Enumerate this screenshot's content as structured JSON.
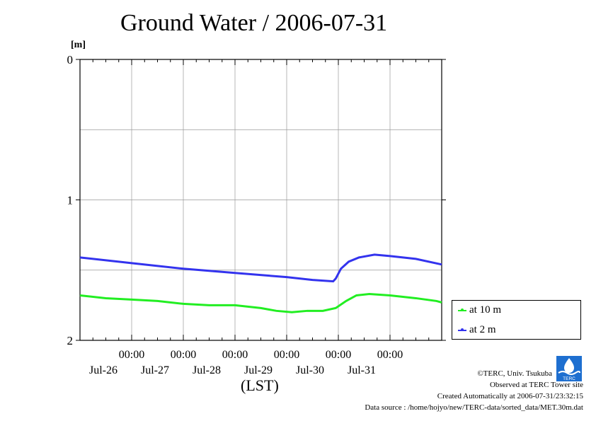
{
  "title": "Ground Water / 2006-07-31",
  "unit": "[m]",
  "xaxis_caption": "(LST)",
  "legend": [
    {
      "label": "at 10 m",
      "color": "#22ee22"
    },
    {
      "label": "at 2 m",
      "color": "#3333ee"
    }
  ],
  "credits": {
    "copyright": "©TERC, Univ. Tsukuba",
    "site": "Observed at TERC Tower site",
    "created": "Created Automatically at 2006-07-31/23:32:15",
    "source": "Data source : /home/hojyo/new/TERC-data/sorted_data/MET.30m.dat"
  },
  "logo_text": "TERC",
  "chart_data": {
    "type": "line",
    "title": "Ground Water / 2006-07-31",
    "ylabel": "[m]",
    "ylim": [
      0,
      2
    ],
    "y_inverted": true,
    "y_ticks": [
      0,
      1,
      2
    ],
    "x_range_days": [
      -1.0,
      5.0
    ],
    "x_tick_labels": [
      {
        "day": 0,
        "time": "00:00",
        "date": "Jul-26"
      },
      {
        "day": 1,
        "time": "00:00",
        "date": "Jul-27"
      },
      {
        "day": 2,
        "time": "00:00",
        "date": "Jul-28"
      },
      {
        "day": 3,
        "time": "00:00",
        "date": "Jul-29"
      },
      {
        "day": 4,
        "time": "00:00",
        "date": "Jul-30"
      },
      {
        "day": 5,
        "time": "00:00",
        "date": "Jul-31"
      }
    ],
    "grid": true,
    "series": [
      {
        "name": "at 10 m",
        "color": "#22ee22",
        "points": [
          [
            -1.0,
            1.68
          ],
          [
            -0.5,
            1.7
          ],
          [
            0.0,
            1.71
          ],
          [
            0.5,
            1.72
          ],
          [
            1.0,
            1.74
          ],
          [
            1.5,
            1.75
          ],
          [
            2.0,
            1.75
          ],
          [
            2.5,
            1.77
          ],
          [
            2.8,
            1.79
          ],
          [
            3.1,
            1.8
          ],
          [
            3.4,
            1.79
          ],
          [
            3.7,
            1.79
          ],
          [
            3.95,
            1.77
          ],
          [
            4.15,
            1.72
          ],
          [
            4.35,
            1.68
          ],
          [
            4.6,
            1.67
          ],
          [
            5.0,
            1.68
          ],
          [
            5.5,
            1.7
          ],
          [
            5.9,
            1.72
          ],
          [
            6.0,
            1.73
          ]
        ]
      },
      {
        "name": "at 2 m",
        "color": "#3333ee",
        "points": [
          [
            -1.0,
            1.41
          ],
          [
            0.0,
            1.45
          ],
          [
            1.0,
            1.49
          ],
          [
            2.0,
            1.52
          ],
          [
            3.0,
            1.55
          ],
          [
            3.5,
            1.57
          ],
          [
            3.9,
            1.58
          ],
          [
            3.95,
            1.56
          ],
          [
            4.05,
            1.49
          ],
          [
            4.2,
            1.44
          ],
          [
            4.4,
            1.41
          ],
          [
            4.7,
            1.39
          ],
          [
            5.0,
            1.4
          ],
          [
            5.5,
            1.42
          ],
          [
            6.0,
            1.46
          ]
        ]
      }
    ]
  }
}
